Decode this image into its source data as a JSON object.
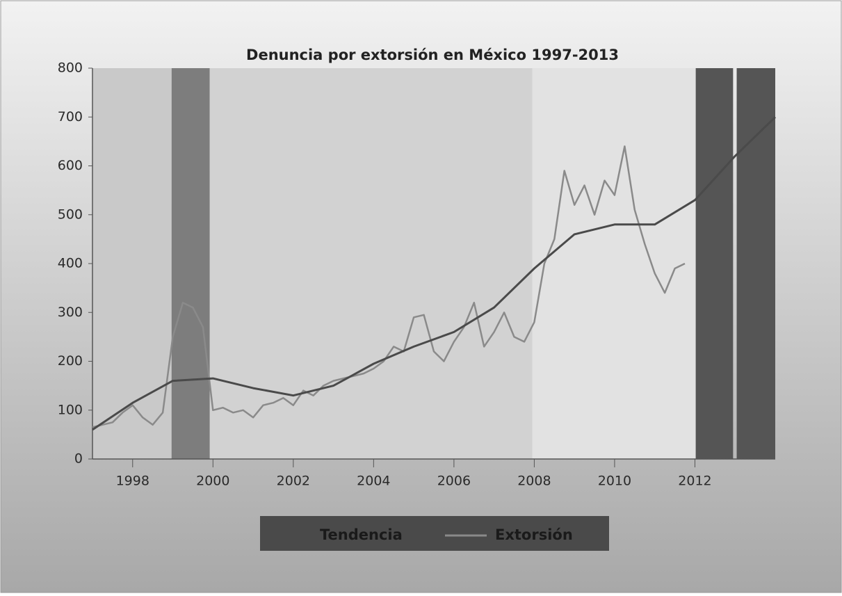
{
  "chart_data": {
    "type": "line",
    "title": "Denuncia por extorsión en México 1997-2013",
    "xlim": [
      1997,
      2014
    ],
    "xticks": [
      1998,
      2000,
      2002,
      2004,
      2006,
      2008,
      2010,
      2012
    ],
    "ylim": [
      0,
      800
    ],
    "yticks": [
      0,
      100,
      200,
      300,
      400,
      500,
      600,
      700,
      800
    ],
    "bands": [
      {
        "x": [
          1997,
          1998.97
        ],
        "color": "#c9c9c9"
      },
      {
        "x": [
          1998.97,
          1999.92
        ],
        "color": "#7d7d7d"
      },
      {
        "x": [
          1999.92,
          2007.95
        ],
        "color": "#d2d2d2"
      },
      {
        "x": [
          2007.95,
          2012.02
        ],
        "color": "#e2e2e2"
      },
      {
        "x": [
          2012.02,
          2012.95
        ],
        "color": "#555555"
      },
      {
        "x": [
          2013.04,
          2014
        ],
        "color": "#555555"
      }
    ],
    "legend": "bottom",
    "series": [
      {
        "name": "Tendencia",
        "color": "#4a4a4a",
        "x": [
          1997,
          1998,
          1999,
          2000,
          2001,
          2002,
          2003,
          2004,
          2005,
          2006,
          2007,
          2008,
          2009,
          2010,
          2011,
          2012,
          2013,
          2014
        ],
        "values": [
          60,
          115,
          160,
          165,
          145,
          130,
          150,
          195,
          230,
          260,
          310,
          390,
          460,
          480,
          480,
          530,
          620,
          700
        ]
      },
      {
        "name": "Extorsión",
        "color": "#8a8a8a",
        "x": [
          1997,
          1997.25,
          1997.5,
          1997.75,
          1998,
          1998.25,
          1998.5,
          1998.75,
          1999,
          1999.25,
          1999.5,
          1999.75,
          2000,
          2000.25,
          2000.5,
          2000.75,
          2001,
          2001.25,
          2001.5,
          2001.75,
          2002,
          2002.25,
          2002.5,
          2002.75,
          2003,
          2003.25,
          2003.5,
          2003.75,
          2004,
          2004.25,
          2004.5,
          2004.75,
          2005,
          2005.25,
          2005.5,
          2005.75,
          2006,
          2006.25,
          2006.5,
          2006.75,
          2007,
          2007.25,
          2007.5,
          2007.75,
          2008,
          2008.25,
          2008.5,
          2008.75,
          2009,
          2009.25,
          2009.5,
          2009.75,
          2010,
          2010.25,
          2010.5,
          2010.75,
          2011,
          2011.25,
          2011.5,
          2011.75
        ],
        "values": [
          65,
          70,
          75,
          95,
          110,
          85,
          70,
          95,
          250,
          320,
          310,
          270,
          100,
          105,
          95,
          100,
          85,
          110,
          115,
          125,
          110,
          140,
          130,
          150,
          160,
          165,
          170,
          175,
          185,
          200,
          230,
          220,
          290,
          295,
          220,
          200,
          240,
          270,
          320,
          230,
          260,
          300,
          250,
          240,
          280,
          400,
          450,
          590,
          520,
          560,
          500,
          570,
          540,
          640,
          510,
          440,
          380,
          340,
          390,
          400
        ]
      }
    ]
  }
}
